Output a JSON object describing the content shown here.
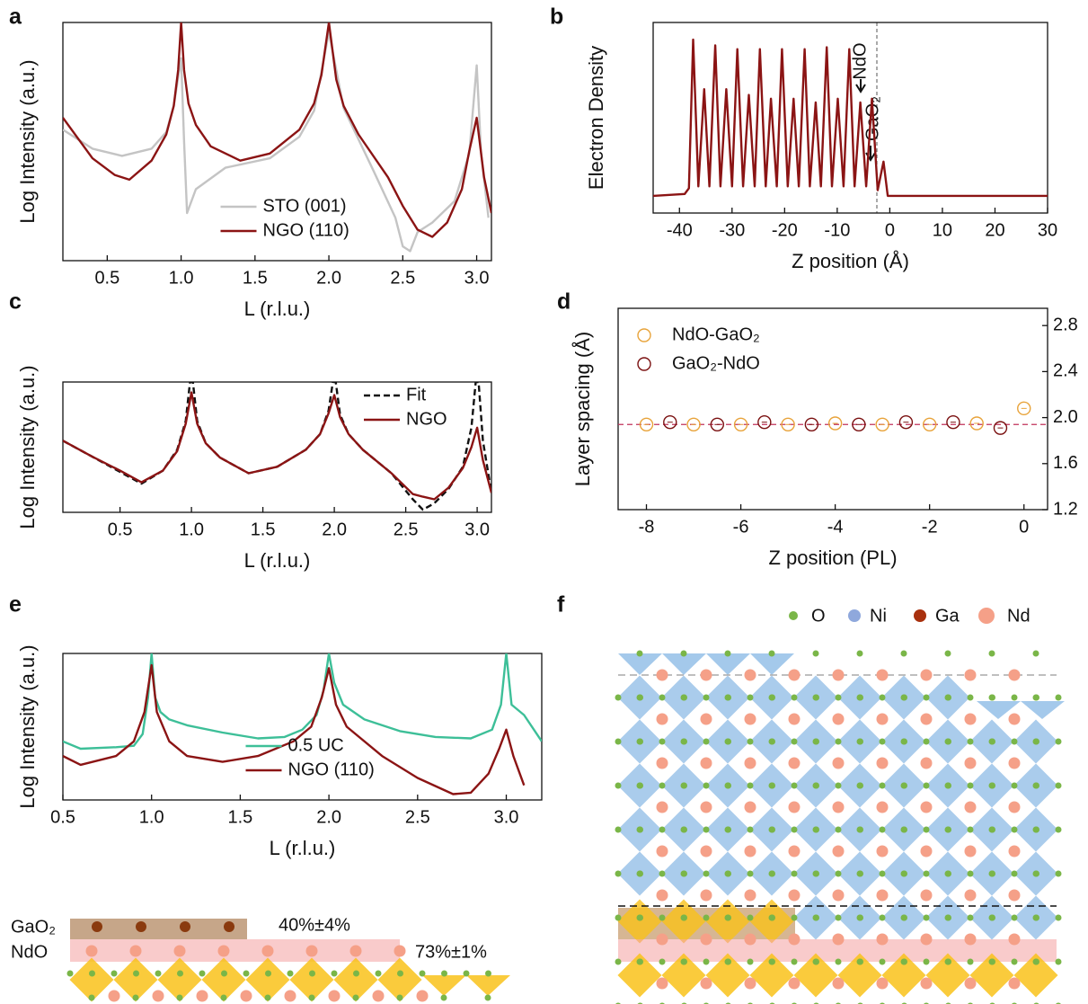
{
  "panel_labels": [
    "a",
    "b",
    "c",
    "d",
    "e",
    "f"
  ],
  "chart_data": [
    {
      "type": "line",
      "xlabel": "L (r.l.u.)",
      "ylabel": "Log Intensity (a.u.)",
      "xlim": [
        0.2,
        3.1
      ],
      "ylim": [
        0,
        10
      ],
      "xticks": [
        0.5,
        {
          "value": 1,
          "label": "1.0"
        },
        1.5,
        {
          "value": 2,
          "label": "2.0"
        },
        2.5,
        {
          "value": 3,
          "label": "3.0"
        }
      ],
      "legend": "lower center",
      "series": [
        {
          "name": "STO (001)",
          "color": "#c4c4c4",
          "x": [
            0.2,
            0.4,
            0.6,
            0.8,
            0.9,
            0.95,
            1.0,
            1.02,
            1.04,
            1.1,
            1.3,
            1.6,
            1.8,
            1.9,
            2.0,
            2.1,
            2.3,
            2.45,
            2.5,
            2.55,
            2.6,
            2.7,
            2.85,
            2.95,
            3.0,
            3.03,
            3.08
          ],
          "values": [
            5.5,
            4.7,
            4.4,
            4.7,
            5.4,
            6.5,
            8.5,
            5.0,
            2.0,
            3.0,
            3.9,
            4.3,
            5.2,
            6.3,
            9.6,
            6.4,
            3.8,
            1.8,
            0.6,
            0.4,
            1.2,
            1.6,
            2.5,
            4.5,
            8.2,
            4.5,
            1.8
          ]
        },
        {
          "name": "NGO (110)",
          "color": "#8b1414",
          "x": [
            0.2,
            0.4,
            0.55,
            0.65,
            0.8,
            0.9,
            0.95,
            0.98,
            1.0,
            1.02,
            1.05,
            1.1,
            1.2,
            1.4,
            1.6,
            1.8,
            1.9,
            1.95,
            2.0,
            2.05,
            2.1,
            2.2,
            2.4,
            2.5,
            2.6,
            2.7,
            2.8,
            2.9,
            2.95,
            3.0,
            3.05,
            3.1
          ],
          "values": [
            6.0,
            4.3,
            3.6,
            3.4,
            4.2,
            5.3,
            6.5,
            8.0,
            10,
            8.0,
            6.6,
            5.7,
            4.8,
            4.2,
            4.5,
            5.5,
            6.6,
            7.8,
            10,
            7.6,
            6.5,
            5.3,
            3.5,
            2.3,
            1.3,
            1.0,
            1.6,
            3.0,
            4.6,
            6.0,
            3.5,
            2.0
          ]
        }
      ]
    },
    {
      "type": "line",
      "xlabel": "Z position (Å)",
      "ylabel": "Electron Density",
      "xlim": [
        -45,
        30
      ],
      "ylim": [
        0,
        1
      ],
      "xticks": [
        -40,
        -30,
        -20,
        -10,
        0,
        10,
        20,
        30
      ],
      "annotations": [
        "NdO",
        "GaO₂"
      ],
      "series": [
        {
          "color": "#8b1414",
          "x": [
            -45,
            -39.0,
            -38.2,
            -37.4,
            -36.4,
            -35.3,
            -34.3,
            -33.2,
            -32.2,
            -31.1,
            -30.0,
            -29.0,
            -27.9,
            -26.8,
            -25.7,
            -24.7,
            -23.6,
            -22.6,
            -21.5,
            -20.5,
            -19.4,
            -18.3,
            -17.3,
            -16.2,
            -15.2,
            -14.1,
            -13.1,
            -12.0,
            -11.0,
            -9.9,
            -8.8,
            -7.7,
            -6.7,
            -5.6,
            -4.5,
            -3.4,
            -2.3,
            -1.2,
            -0.4,
            30
          ],
          "values": [
            0.09,
            0.1,
            0.13,
            0.91,
            0.14,
            0.65,
            0.14,
            0.88,
            0.14,
            0.65,
            0.14,
            0.86,
            0.14,
            0.62,
            0.14,
            0.86,
            0.14,
            0.6,
            0.14,
            0.86,
            0.14,
            0.6,
            0.14,
            0.86,
            0.14,
            0.58,
            0.14,
            0.87,
            0.14,
            0.6,
            0.14,
            0.86,
            0.14,
            0.58,
            0.14,
            0.6,
            0.12,
            0.27,
            0.09,
            0.09
          ]
        }
      ]
    },
    {
      "type": "line",
      "xlabel": "L (r.l.u.)",
      "ylabel": "Log Intensity (a.u.)",
      "xlim": [
        0.1,
        3.1
      ],
      "ylim": [
        0,
        10
      ],
      "xticks": [
        0.5,
        {
          "value": 1,
          "label": "1.0"
        },
        1.5,
        {
          "value": 2,
          "label": "2.0"
        },
        2.5,
        {
          "value": 3,
          "label": "3.0"
        }
      ],
      "legend": "upper right",
      "series": [
        {
          "name": "Fit",
          "color": "#111111",
          "dash": true,
          "x": [
            0.1,
            0.3,
            0.5,
            0.65,
            0.8,
            0.9,
            0.96,
            0.99,
            1.01,
            1.04,
            1.1,
            1.2,
            1.4,
            1.6,
            1.8,
            1.9,
            1.96,
            1.99,
            2.01,
            2.04,
            2.1,
            2.2,
            2.4,
            2.55,
            2.62,
            2.7,
            2.8,
            2.9,
            2.96,
            2.99,
            3.01,
            3.04,
            3.1
          ],
          "values": [
            5.5,
            4.3,
            3.1,
            2.2,
            3.2,
            4.8,
            7.0,
            10,
            10,
            7.0,
            5.3,
            4.2,
            3.0,
            3.5,
            4.8,
            6.0,
            7.8,
            10,
            10,
            7.5,
            6.0,
            4.8,
            3.0,
            1.0,
            0.2,
            0.7,
            1.8,
            3.5,
            6.5,
            10,
            10,
            5.5,
            1.5
          ]
        },
        {
          "name": "NGO",
          "color": "#8b1414",
          "x": [
            0.1,
            0.3,
            0.5,
            0.65,
            0.8,
            0.9,
            0.96,
            1.0,
            1.04,
            1.1,
            1.2,
            1.4,
            1.6,
            1.8,
            1.9,
            1.96,
            2.0,
            2.04,
            2.1,
            2.2,
            2.4,
            2.55,
            2.62,
            2.7,
            2.8,
            2.9,
            2.96,
            3.0,
            3.04,
            3.1
          ],
          "values": [
            5.5,
            4.3,
            3.2,
            2.3,
            3.2,
            4.7,
            6.8,
            9.2,
            6.8,
            5.3,
            4.2,
            3.0,
            3.5,
            4.8,
            6.0,
            7.6,
            9.0,
            7.3,
            6.0,
            4.8,
            3.0,
            1.4,
            1.2,
            1.0,
            1.9,
            3.4,
            5.0,
            6.5,
            4.0,
            1.5
          ]
        }
      ]
    },
    {
      "type": "scatter",
      "xlabel": "Z position (PL)",
      "ylabel": "Layer spacing (Å)",
      "xlim": [
        -8.6,
        0.5
      ],
      "ylim": [
        1.2,
        2.95
      ],
      "yaxis": "right",
      "xticks": [
        -8,
        -6,
        -4,
        -2,
        0
      ],
      "yticks": [
        1.2,
        1.6,
        {
          "value": 2,
          "label": "2.0"
        },
        2.4,
        2.8
      ],
      "hline": 1.94,
      "legend": "upper left",
      "series": [
        {
          "name": "NdO-GaO₂",
          "color": "#e8a33a",
          "x": [
            -8,
            -7,
            -6,
            -5,
            -4,
            -3,
            -2,
            -1,
            0
          ],
          "values": [
            1.94,
            1.94,
            1.94,
            1.94,
            1.95,
            1.94,
            1.94,
            1.95,
            2.08
          ]
        },
        {
          "name": "GaO₂-NdO",
          "color": "#7a1010",
          "x": [
            -7.5,
            -6.5,
            -5.5,
            -4.5,
            -3.5,
            -2.5,
            -1.5,
            -0.5
          ],
          "values": [
            1.96,
            1.94,
            1.96,
            1.94,
            1.94,
            1.96,
            1.96,
            1.91
          ]
        }
      ]
    },
    {
      "type": "line",
      "xlabel": "L (r.l.u.)",
      "ylabel": "Log Intensity (a.u.)",
      "xlim": [
        0.5,
        3.2
      ],
      "ylim": [
        0,
        10
      ],
      "xticks": [
        0.5,
        {
          "value": 1,
          "label": "1.0"
        },
        1.5,
        {
          "value": 2,
          "label": "2.0"
        },
        2.5,
        {
          "value": 3,
          "label": "3.0"
        }
      ],
      "legend": "lower center",
      "series": [
        {
          "name": "0.5 UC",
          "color": "#3dbf98",
          "x": [
            0.5,
            0.6,
            0.8,
            0.9,
            0.95,
            0.98,
            1.0,
            1.02,
            1.05,
            1.1,
            1.2,
            1.4,
            1.6,
            1.75,
            1.85,
            1.93,
            1.97,
            2.0,
            2.03,
            2.08,
            2.2,
            2.4,
            2.6,
            2.8,
            2.92,
            2.97,
            3.0,
            3.03,
            3.1,
            3.2
          ],
          "values": [
            4.0,
            3.5,
            3.6,
            3.7,
            4.5,
            7.0,
            10,
            7.0,
            6.0,
            5.5,
            5.1,
            4.6,
            4.2,
            4.3,
            4.8,
            5.8,
            7.5,
            10,
            8.0,
            6.5,
            5.5,
            4.7,
            4.3,
            4.2,
            4.8,
            6.5,
            10,
            6.5,
            5.8,
            4.0
          ]
        },
        {
          "name": "NGO (110)",
          "color": "#8b1414",
          "x": [
            0.5,
            0.6,
            0.8,
            0.9,
            0.96,
            1.0,
            1.03,
            1.1,
            1.2,
            1.4,
            1.6,
            1.8,
            1.9,
            1.96,
            2.0,
            2.04,
            2.1,
            2.3,
            2.5,
            2.7,
            2.8,
            2.9,
            2.96,
            3.0,
            3.04,
            3.1
          ],
          "values": [
            3.0,
            2.4,
            3.0,
            4.0,
            6.0,
            9.2,
            6.0,
            4.0,
            3.0,
            2.6,
            3.0,
            4.0,
            5.0,
            7.0,
            9.0,
            6.5,
            5.0,
            3.0,
            1.5,
            0.4,
            0.5,
            1.8,
            3.5,
            4.8,
            3.0,
            1.0
          ]
        }
      ]
    }
  ],
  "structure_e": {
    "layers": [
      {
        "label": "GaO₂",
        "coverage": "40%±4%"
      },
      {
        "label": "NdO",
        "coverage": "73%±1%"
      }
    ]
  },
  "structure_f": {
    "legend": [
      "O",
      "Ni",
      "Ga",
      "Nd"
    ]
  }
}
